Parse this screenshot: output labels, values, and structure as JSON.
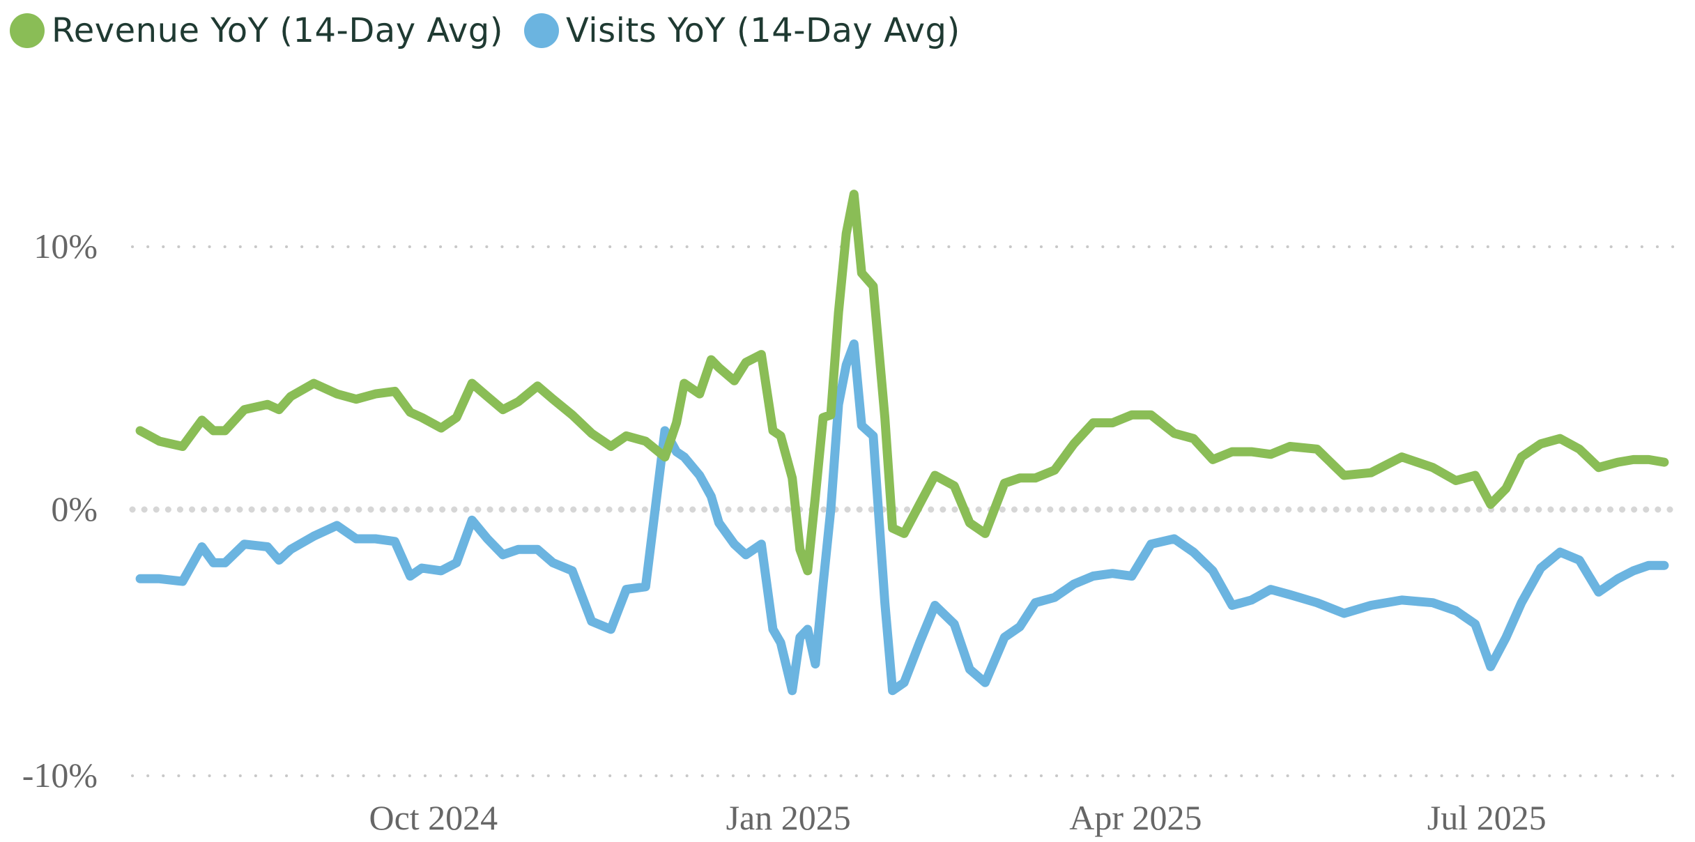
{
  "legend": {
    "revenue_label": "Revenue YoY (14-Day Avg)",
    "visits_label": "Visits YoY (14-Day Avg)"
  },
  "colors": {
    "revenue": "#8abd56",
    "visits": "#6bb4e0",
    "grid": "#c8c8c8",
    "zero_line": "#d6d6d6",
    "tick_text": "#666666",
    "legend_text": "#1f3a32"
  },
  "chart_data": {
    "type": "line",
    "x_axis": {
      "start": "2024-07-15",
      "end": "2025-08-20",
      "ticks": [
        {
          "date": "2024-10-01",
          "label": "Oct 2024"
        },
        {
          "date": "2025-01-01",
          "label": "Jan 2025"
        },
        {
          "date": "2025-04-01",
          "label": "Apr 2025"
        },
        {
          "date": "2025-07-01",
          "label": "Jul 2025"
        }
      ]
    },
    "y_axis": {
      "ylim": [
        -10,
        10
      ],
      "ticks": [
        {
          "value": 10,
          "label": "10%"
        },
        {
          "value": 0,
          "label": "0%"
        },
        {
          "value": -10,
          "label": "-10%"
        }
      ],
      "grid": "dotted"
    },
    "legend_position": "top-left",
    "series": [
      {
        "name": "Revenue YoY (14-Day Avg)",
        "key": "revenue",
        "x": [
          "2024-07-17",
          "2024-07-22",
          "2024-07-28",
          "2024-08-02",
          "2024-08-05",
          "2024-08-08",
          "2024-08-13",
          "2024-08-19",
          "2024-08-22",
          "2024-08-25",
          "2024-08-31",
          "2024-09-06",
          "2024-09-11",
          "2024-09-16",
          "2024-09-21",
          "2024-09-25",
          "2024-09-28",
          "2024-10-03",
          "2024-10-07",
          "2024-10-11",
          "2024-10-15",
          "2024-10-19",
          "2024-10-23",
          "2024-10-28",
          "2024-11-01",
          "2024-11-06",
          "2024-11-11",
          "2024-11-16",
          "2024-11-20",
          "2024-11-25",
          "2024-11-30",
          "2024-12-03",
          "2024-12-05",
          "2024-12-09",
          "2024-12-12",
          "2024-12-14",
          "2024-12-18",
          "2024-12-21",
          "2024-12-25",
          "2024-12-28",
          "2024-12-30",
          "2025-01-02",
          "2025-01-04",
          "2025-01-06",
          "2025-01-08",
          "2025-01-10",
          "2025-01-12",
          "2025-01-14",
          "2025-01-16",
          "2025-01-18",
          "2025-01-20",
          "2025-01-23",
          "2025-01-26",
          "2025-01-28",
          "2025-01-31",
          "2025-02-04",
          "2025-02-08",
          "2025-02-13",
          "2025-02-17",
          "2025-02-21",
          "2025-02-26",
          "2025-03-02",
          "2025-03-06",
          "2025-03-11",
          "2025-03-16",
          "2025-03-21",
          "2025-03-26",
          "2025-03-31",
          "2025-04-05",
          "2025-04-11",
          "2025-04-16",
          "2025-04-21",
          "2025-04-26",
          "2025-05-01",
          "2025-05-06",
          "2025-05-11",
          "2025-05-18",
          "2025-05-25",
          "2025-06-01",
          "2025-06-09",
          "2025-06-17",
          "2025-06-23",
          "2025-06-28",
          "2025-07-02",
          "2025-07-06",
          "2025-07-10",
          "2025-07-15",
          "2025-07-20",
          "2025-07-25",
          "2025-07-30",
          "2025-08-04",
          "2025-08-08",
          "2025-08-12",
          "2025-08-16"
        ],
        "y": [
          3.0,
          2.6,
          2.4,
          3.4,
          3.0,
          3.0,
          3.8,
          4.0,
          3.8,
          4.3,
          4.8,
          4.4,
          4.2,
          4.4,
          4.5,
          3.7,
          3.5,
          3.1,
          3.5,
          4.8,
          4.3,
          3.8,
          4.1,
          4.7,
          4.2,
          3.6,
          2.9,
          2.4,
          2.8,
          2.6,
          2.0,
          3.3,
          4.8,
          4.4,
          5.7,
          5.4,
          4.9,
          5.6,
          5.9,
          3.0,
          2.8,
          1.2,
          -1.5,
          -2.3,
          0.5,
          3.5,
          3.6,
          7.5,
          10.5,
          12.0,
          9.0,
          8.5,
          3.5,
          -0.7,
          -0.9,
          0.2,
          1.3,
          0.9,
          -0.5,
          -0.9,
          1.0,
          1.2,
          1.2,
          1.5,
          2.5,
          3.3,
          3.3,
          3.6,
          3.6,
          2.9,
          2.7,
          1.9,
          2.2,
          2.2,
          2.1,
          2.4,
          2.3,
          1.3,
          1.4,
          2.0,
          1.6,
          1.1,
          1.3,
          0.2,
          0.8,
          2.0,
          2.5,
          2.7,
          2.3,
          1.6,
          1.8,
          1.9,
          1.9,
          1.8
        ]
      },
      {
        "name": "Visits YoY (14-Day Avg)",
        "key": "visits",
        "x": [
          "2024-07-17",
          "2024-07-22",
          "2024-07-28",
          "2024-08-02",
          "2024-08-05",
          "2024-08-08",
          "2024-08-13",
          "2024-08-19",
          "2024-08-22",
          "2024-08-25",
          "2024-08-31",
          "2024-09-06",
          "2024-09-11",
          "2024-09-16",
          "2024-09-21",
          "2024-09-25",
          "2024-09-28",
          "2024-10-03",
          "2024-10-07",
          "2024-10-11",
          "2024-10-15",
          "2024-10-19",
          "2024-10-23",
          "2024-10-28",
          "2024-11-01",
          "2024-11-06",
          "2024-11-11",
          "2024-11-16",
          "2024-11-20",
          "2024-11-25",
          "2024-11-30",
          "2024-12-03",
          "2024-12-05",
          "2024-12-09",
          "2024-12-12",
          "2024-12-14",
          "2024-12-18",
          "2024-12-21",
          "2024-12-25",
          "2024-12-28",
          "2024-12-30",
          "2025-01-02",
          "2025-01-04",
          "2025-01-06",
          "2025-01-08",
          "2025-01-10",
          "2025-01-12",
          "2025-01-14",
          "2025-01-16",
          "2025-01-18",
          "2025-01-20",
          "2025-01-23",
          "2025-01-26",
          "2025-01-28",
          "2025-01-31",
          "2025-02-04",
          "2025-02-08",
          "2025-02-13",
          "2025-02-17",
          "2025-02-21",
          "2025-02-26",
          "2025-03-02",
          "2025-03-06",
          "2025-03-11",
          "2025-03-16",
          "2025-03-21",
          "2025-03-26",
          "2025-03-31",
          "2025-04-05",
          "2025-04-11",
          "2025-04-16",
          "2025-04-21",
          "2025-04-26",
          "2025-05-01",
          "2025-05-06",
          "2025-05-11",
          "2025-05-18",
          "2025-05-25",
          "2025-06-01",
          "2025-06-09",
          "2025-06-17",
          "2025-06-23",
          "2025-06-28",
          "2025-07-02",
          "2025-07-06",
          "2025-07-10",
          "2025-07-15",
          "2025-07-20",
          "2025-07-25",
          "2025-07-30",
          "2025-08-04",
          "2025-08-08",
          "2025-08-12",
          "2025-08-16"
        ],
        "y": [
          -2.6,
          -2.6,
          -2.7,
          -1.4,
          -2.0,
          -2.0,
          -1.3,
          -1.4,
          -1.9,
          -1.5,
          -1.0,
          -0.6,
          -1.1,
          -1.1,
          -1.2,
          -2.5,
          -2.2,
          -2.3,
          -2.0,
          -0.4,
          -1.1,
          -1.7,
          -1.5,
          -1.5,
          -2.0,
          -2.3,
          -4.2,
          -4.5,
          -3.0,
          -2.9,
          3.0,
          2.2,
          2.0,
          1.3,
          0.5,
          -0.5,
          -1.3,
          -1.7,
          -1.3,
          -4.5,
          -5.0,
          -6.8,
          -4.8,
          -4.5,
          -5.8,
          -2.8,
          0.0,
          4.0,
          5.5,
          6.3,
          3.2,
          2.8,
          -3.5,
          -6.8,
          -6.5,
          -5.0,
          -3.6,
          -4.3,
          -6.0,
          -6.5,
          -4.8,
          -4.4,
          -3.5,
          -3.3,
          -2.8,
          -2.5,
          -2.4,
          -2.5,
          -1.3,
          -1.1,
          -1.6,
          -2.3,
          -3.6,
          -3.4,
          -3.0,
          -3.2,
          -3.5,
          -3.9,
          -3.6,
          -3.4,
          -3.5,
          -3.8,
          -4.3,
          -5.9,
          -4.8,
          -3.5,
          -2.2,
          -1.6,
          -1.9,
          -3.1,
          -2.6,
          -2.3,
          -2.1,
          -2.1
        ]
      }
    ]
  }
}
